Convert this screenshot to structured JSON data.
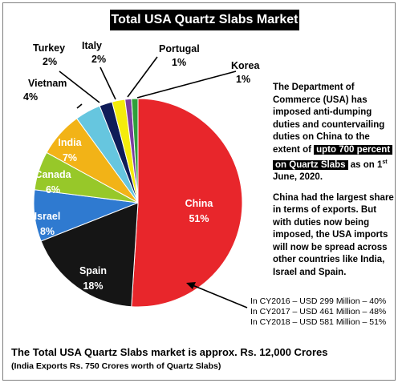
{
  "chart_data": {
    "type": "pie",
    "title": "Total USA Quartz Slabs Market",
    "slices": [
      {
        "name": "China",
        "pct_label": "51%",
        "value": 51,
        "color": "#e8262b"
      },
      {
        "name": "Spain",
        "pct_label": "18%",
        "value": 18,
        "color": "#151515"
      },
      {
        "name": "Israel",
        "pct_label": "8%",
        "value": 8,
        "color": "#2f7ad0"
      },
      {
        "name": "Canada",
        "pct_label": "6%",
        "value": 6,
        "color": "#97c829"
      },
      {
        "name": "India",
        "pct_label": "7%",
        "value": 7,
        "color": "#f2b317"
      },
      {
        "name": "Vietnam",
        "pct_label": "4%",
        "value": 4,
        "color": "#66c6df"
      },
      {
        "name": "Turkey",
        "pct_label": "2%",
        "value": 2,
        "color": "#0f1c58"
      },
      {
        "name": "Italy",
        "pct_label": "2%",
        "value": 2,
        "color": "#f4ec0b"
      },
      {
        "name": "Portugal",
        "pct_label": "1%",
        "value": 1,
        "color": "#7a3ea0"
      },
      {
        "name": "Korea",
        "pct_label": "1%",
        "value": 1,
        "color": "#2f9f3a"
      }
    ]
  },
  "info": {
    "p1_text": "The Department of Commerce (USA) has imposed anti-dumping duties and countervailing duties on China to the extent of",
    "p1_highlight_1": "upto 700 percent",
    "p1_highlight_2": "on Quartz Slabs",
    "p1_tail": "as on 1",
    "p1_sup": "st",
    "p1_date": "June, 2020.",
    "p2": "China had the largest share in terms of exports. But with duties now being imposed, the USA imports will now be spread across other countries like India, Israel  and Spain."
  },
  "stats": [
    "In CY2016 – USD 299 Million – 40%",
    "In CY2017 – USD 461 Million – 48%",
    "In CY2018 – USD 581 Million – 51%"
  ],
  "footer": {
    "line1": "The Total USA Quartz Slabs market is approx. Rs. 12,000 Crores",
    "line2": "(India Exports Rs. 750 Crores worth of Quartz Slabs)"
  }
}
